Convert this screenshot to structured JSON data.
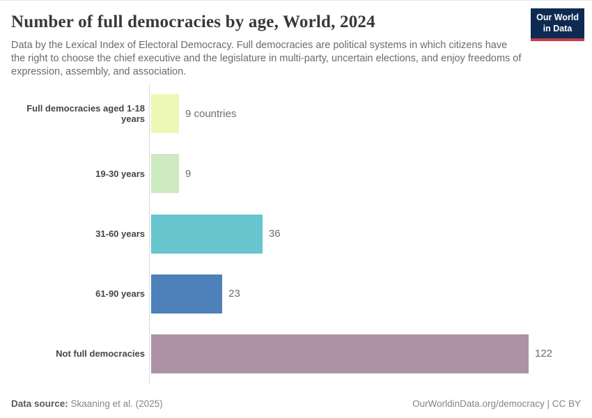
{
  "header": {
    "title": "Number of full democracies by age, World, 2024",
    "subtitle": "Data by the Lexical Index of Electoral Democracy. Full democracies are political systems in which citizens have the right to choose the chief executive and the legislature in multi-party, uncertain elections, and enjoy freedoms of expression, assembly, and association.",
    "logo": {
      "line1": "Our World",
      "line2": "in Data",
      "background_color": "#0e2a52",
      "accent_color": "#c43c4d"
    }
  },
  "chart_data": {
    "type": "bar",
    "orientation": "horizontal",
    "title": "Number of full democracies by age, World, 2024",
    "categories": [
      "Full democracies aged 1-18 years",
      "19-30 years",
      "31-60 years",
      "61-90 years",
      "Not full democracies"
    ],
    "values": [
      9,
      9,
      36,
      23,
      122
    ],
    "value_labels": [
      "9 countries",
      "9",
      "36",
      "23",
      "122"
    ],
    "bar_colors": [
      "#edf8b5",
      "#cdeac3",
      "#66c5cd",
      "#4e80ba",
      "#ac92a4"
    ],
    "xlim": [
      0,
      122
    ],
    "grid": "off",
    "legend": "none"
  },
  "footer": {
    "datasource_label": "Data source:",
    "datasource_value": "Skaaning et al. (2025)",
    "attribution": "OurWorldinData.org/democracy | CC BY"
  }
}
